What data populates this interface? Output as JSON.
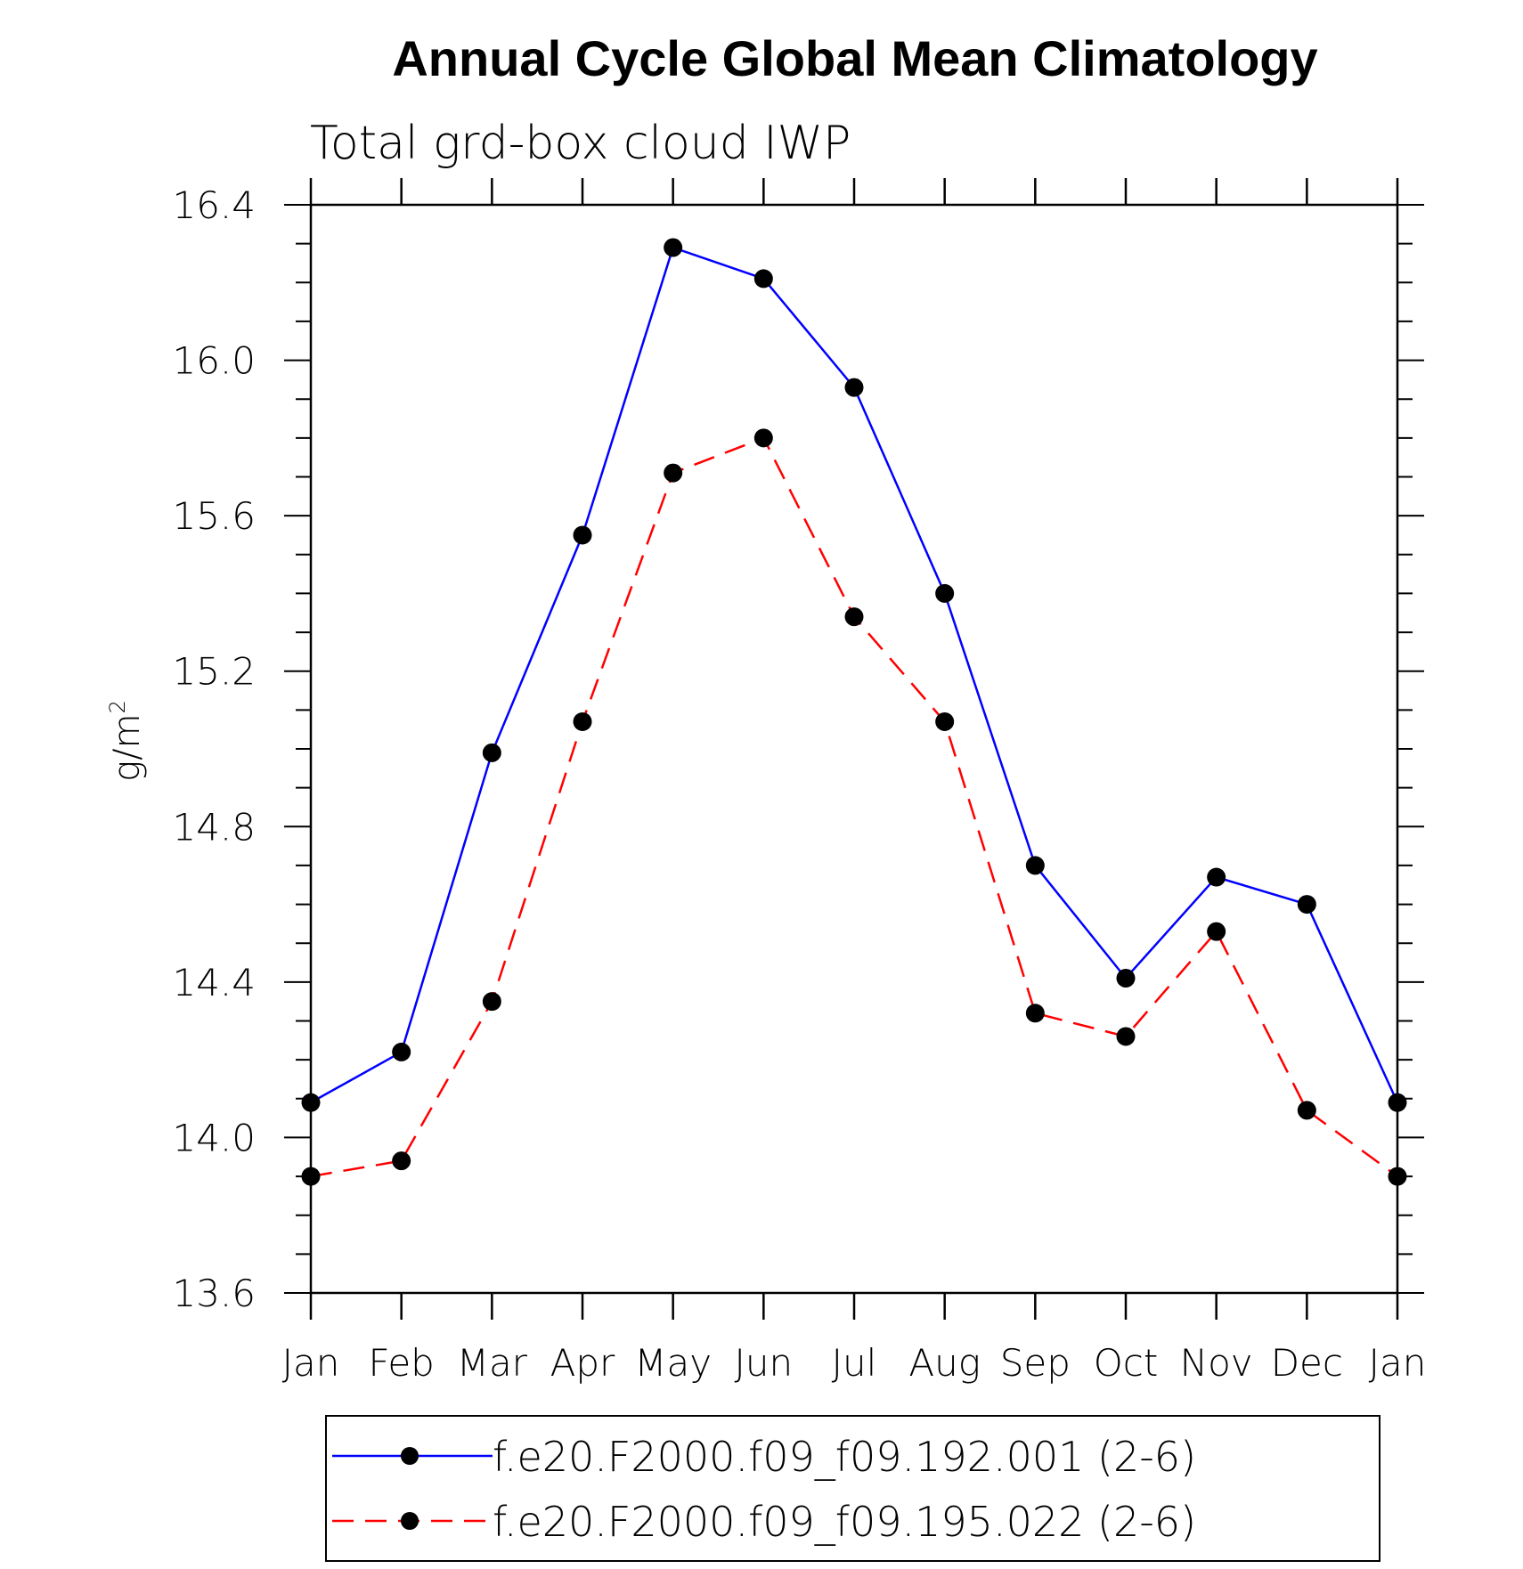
{
  "chart_data": {
    "type": "line",
    "title": "Annual Cycle Global Mean Climatology",
    "subtitle": "Total grd-box cloud IWP",
    "ylabel": "g/m",
    "ylabel_superscript": "2",
    "categories": [
      "Jan",
      "Feb",
      "Mar",
      "Apr",
      "May",
      "Jun",
      "Jul",
      "Aug",
      "Sep",
      "Oct",
      "Nov",
      "Dec",
      "Jan"
    ],
    "ylim": [
      13.6,
      16.4
    ],
    "yticks": [
      "16.4",
      "16.0",
      "15.6",
      "15.2",
      "14.8",
      "14.4",
      "14.0",
      "13.6"
    ],
    "series": [
      {
        "name": "f.e20.F2000.f09_f09.192.001 (2-6)",
        "color": "#0000ff",
        "dash": "solid",
        "values": [
          14.09,
          14.22,
          14.99,
          15.55,
          16.29,
          16.21,
          15.93,
          15.4,
          14.7,
          14.41,
          14.67,
          14.6,
          14.09
        ]
      },
      {
        "name": "f.e20.F2000.f09_f09.195.022 (2-6)",
        "color": "#ff0000",
        "dash": "dashed",
        "values": [
          13.9,
          13.94,
          14.35,
          15.07,
          15.71,
          15.8,
          15.34,
          15.07,
          14.32,
          14.26,
          14.53,
          14.07,
          13.9
        ]
      }
    ],
    "marker_color": "#000000",
    "legend_position": "bottom"
  }
}
